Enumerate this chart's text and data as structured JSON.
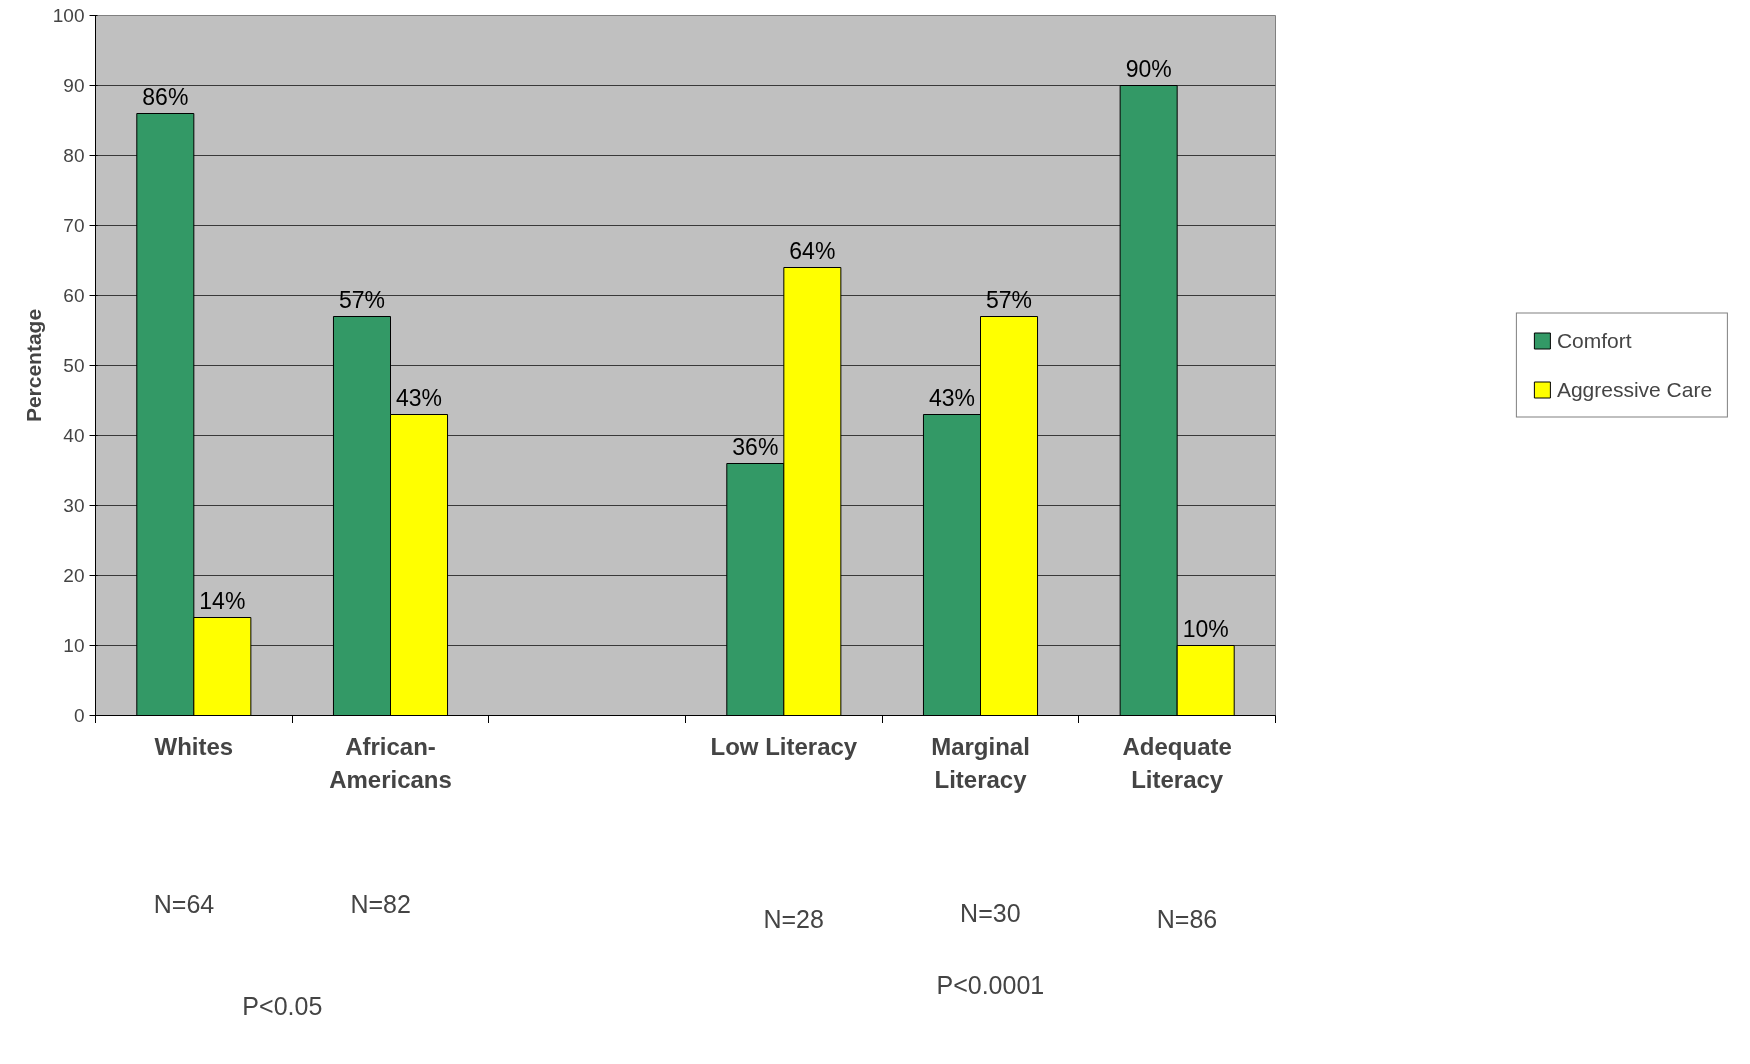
{
  "chart_data": {
    "type": "bar",
    "ylabel": "Percentage",
    "categories": [
      "Whites",
      "African-\nAmericans",
      null,
      "Low Literacy",
      "Marginal\nLiteracy",
      "Adequate\nLiteracy"
    ],
    "series": [
      {
        "name": "Comfort",
        "color": "#339966",
        "values": [
          86,
          57,
          null,
          36,
          43,
          90
        ],
        "value_labels": [
          "86%",
          "57%",
          null,
          "36%",
          "43%",
          "90%"
        ]
      },
      {
        "name": "Aggressive Care",
        "color": "#ffff00",
        "values": [
          14,
          43,
          null,
          64,
          57,
          10
        ],
        "value_labels": [
          "14%",
          "43%",
          null,
          "64%",
          "57%",
          "10%"
        ]
      }
    ],
    "ylim": [
      0,
      100
    ],
    "yticks": [
      0,
      10,
      20,
      30,
      40,
      50,
      60,
      70,
      80,
      90,
      100
    ],
    "grid": "y",
    "legend": "right",
    "annotations": [
      "N=64",
      "N=82",
      "N=28",
      "N=30",
      "N=86",
      "P<0.05",
      "P<0.0001"
    ]
  }
}
